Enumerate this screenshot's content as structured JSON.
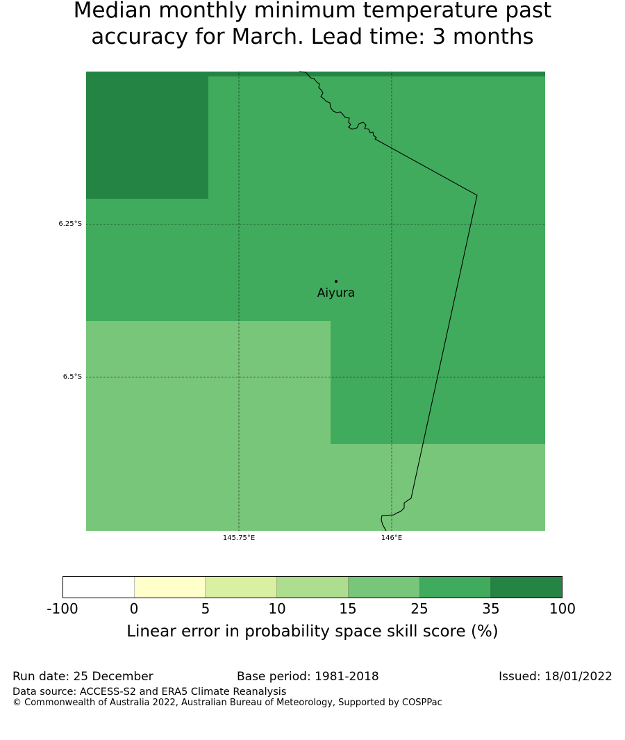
{
  "title": {
    "line1": "Median monthly minimum temperature past",
    "line2": "accuracy for March. Lead time: 3 months"
  },
  "map": {
    "lat_labels": [
      "6.25°S",
      "6.5°S"
    ],
    "lon_labels": [
      "145.75°E",
      "146°E"
    ],
    "place": {
      "name": "Aiyura"
    },
    "region_colors": {
      "class_35_100": "#238443",
      "class_25_35": "#41ab5d",
      "class_15_25": "#78c679"
    }
  },
  "colorbar": {
    "ticks": [
      "-100",
      "0",
      "5",
      "10",
      "15",
      "25",
      "35",
      "100"
    ],
    "colors": [
      "#ffffff",
      "#ffffcc",
      "#d9f0a3",
      "#addd8e",
      "#78c679",
      "#41ab5d",
      "#238443"
    ],
    "label": "Linear error in probability space skill score (%)"
  },
  "footer": {
    "run_date": "Run date: 25 December",
    "base_period": "Base period: 1981-2018",
    "issued": "Issued: 18/01/2022",
    "data_source": "Data source: ACCESS-S2 and ERA5 Climate Reanalysis",
    "copyright": "© Commonwealth of Australia 2022, Australian Bureau of Meteorology, Supported by COSPPac"
  }
}
